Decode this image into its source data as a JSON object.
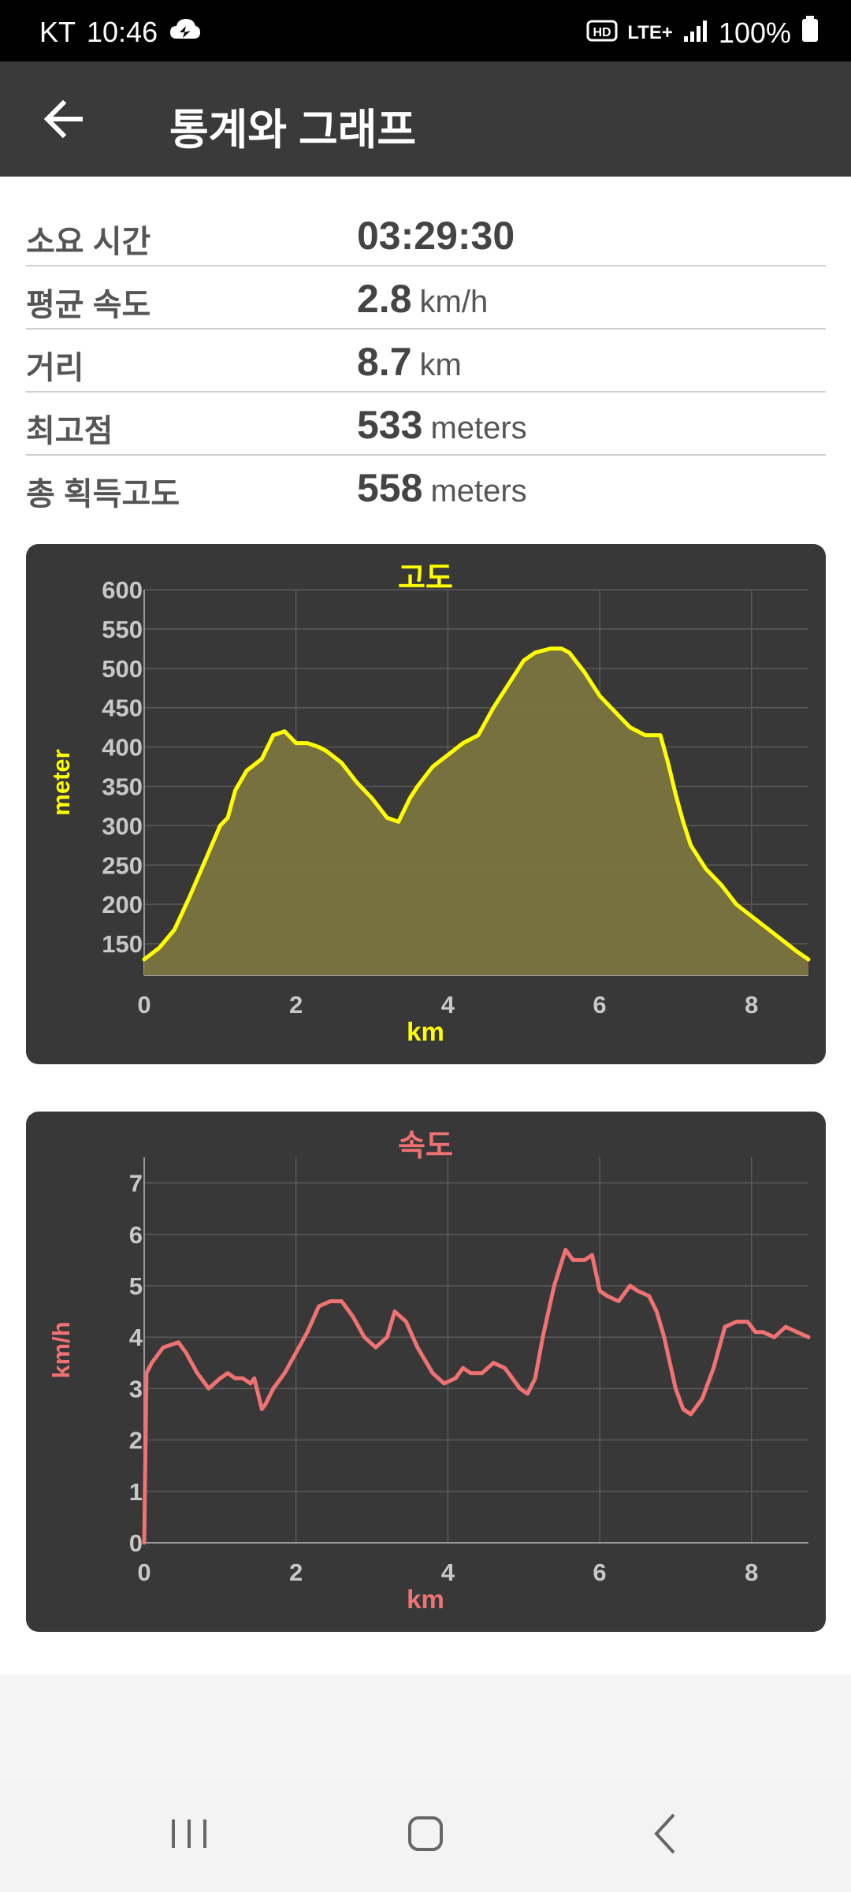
{
  "status_bar": {
    "carrier": "KT",
    "time": "10:46",
    "network": "LTE+",
    "battery": "100%"
  },
  "app_bar": {
    "title": "통계와 그래프"
  },
  "stats": [
    {
      "label": "소요 시간",
      "value": "03:29:30",
      "unit": ""
    },
    {
      "label": "평균 속도",
      "value": "2.8",
      "unit": "km/h"
    },
    {
      "label": "거리",
      "value": "8.7",
      "unit": "km"
    },
    {
      "label": "최고점",
      "value": "533",
      "unit": "meters"
    },
    {
      "label": "총 획득고도",
      "value": "558",
      "unit": "meters"
    }
  ],
  "chart_data": [
    {
      "type": "area",
      "title": "고도",
      "xlabel": "km",
      "ylabel": "meter",
      "xlim": [
        0,
        8.75
      ],
      "ylim": [
        110,
        600
      ],
      "xticks": [
        0,
        2,
        4,
        6,
        8
      ],
      "yticks": [
        150,
        200,
        250,
        300,
        350,
        400,
        450,
        500,
        550,
        600
      ],
      "grid": true,
      "color": "#ffff00",
      "fill": "#7a7440",
      "x": [
        0,
        0.2,
        0.4,
        0.6,
        0.8,
        1.0,
        1.1,
        1.2,
        1.35,
        1.55,
        1.7,
        1.85,
        2.0,
        2.15,
        2.3,
        2.4,
        2.6,
        2.8,
        3.0,
        3.2,
        3.35,
        3.5,
        3.6,
        3.8,
        4.0,
        4.2,
        4.4,
        4.6,
        4.8,
        5.0,
        5.15,
        5.35,
        5.5,
        5.6,
        5.8,
        6.0,
        6.2,
        6.4,
        6.6,
        6.8,
        6.9,
        7.0,
        7.1,
        7.2,
        7.4,
        7.6,
        7.8,
        8.0,
        8.2,
        8.4,
        8.6,
        8.75
      ],
      "y": [
        130,
        145,
        168,
        210,
        255,
        300,
        310,
        345,
        370,
        385,
        415,
        420,
        405,
        405,
        400,
        395,
        380,
        355,
        335,
        310,
        305,
        335,
        350,
        375,
        390,
        405,
        415,
        450,
        480,
        510,
        520,
        525,
        525,
        520,
        495,
        465,
        445,
        425,
        415,
        415,
        380,
        340,
        305,
        275,
        245,
        225,
        200,
        185,
        170,
        155,
        140,
        130
      ]
    },
    {
      "type": "line",
      "title": "속도",
      "xlabel": "km",
      "ylabel": "km/h",
      "xlim": [
        0,
        8.75
      ],
      "ylim": [
        0,
        7.5
      ],
      "xticks": [
        0,
        2,
        4,
        6,
        8
      ],
      "yticks": [
        0,
        1,
        2,
        3,
        4,
        5,
        6,
        7
      ],
      "grid": true,
      "color": "#f07272",
      "x": [
        0,
        0.03,
        0.1,
        0.25,
        0.45,
        0.55,
        0.7,
        0.85,
        1.0,
        1.1,
        1.2,
        1.3,
        1.4,
        1.45,
        1.55,
        1.6,
        1.7,
        1.85,
        2.0,
        2.15,
        2.3,
        2.45,
        2.6,
        2.75,
        2.9,
        3.05,
        3.2,
        3.3,
        3.45,
        3.6,
        3.8,
        3.95,
        4.1,
        4.2,
        4.3,
        4.45,
        4.6,
        4.75,
        4.85,
        4.95,
        5.05,
        5.15,
        5.25,
        5.4,
        5.55,
        5.65,
        5.8,
        5.9,
        6.0,
        6.1,
        6.25,
        6.4,
        6.5,
        6.65,
        6.75,
        6.85,
        7.0,
        7.1,
        7.2,
        7.35,
        7.5,
        7.65,
        7.8,
        7.95,
        8.05,
        8.15,
        8.3,
        8.45,
        8.6,
        8.75
      ],
      "y": [
        0,
        3.3,
        3.5,
        3.8,
        3.9,
        3.7,
        3.3,
        3.0,
        3.2,
        3.3,
        3.2,
        3.2,
        3.1,
        3.2,
        2.6,
        2.7,
        3.0,
        3.3,
        3.7,
        4.1,
        4.6,
        4.7,
        4.7,
        4.4,
        4.0,
        3.8,
        4.0,
        4.5,
        4.3,
        3.8,
        3.3,
        3.1,
        3.2,
        3.4,
        3.3,
        3.3,
        3.5,
        3.4,
        3.2,
        3.0,
        2.9,
        3.2,
        4.0,
        5.0,
        5.7,
        5.5,
        5.5,
        5.6,
        4.9,
        4.8,
        4.7,
        5.0,
        4.9,
        4.8,
        4.5,
        4.0,
        3.0,
        2.6,
        2.5,
        2.8,
        3.4,
        4.2,
        4.3,
        4.3,
        4.1,
        4.1,
        4.0,
        4.2,
        4.1,
        4.0
      ]
    }
  ],
  "nav": {
    "recents": "recents",
    "home": "home",
    "back": "back"
  }
}
